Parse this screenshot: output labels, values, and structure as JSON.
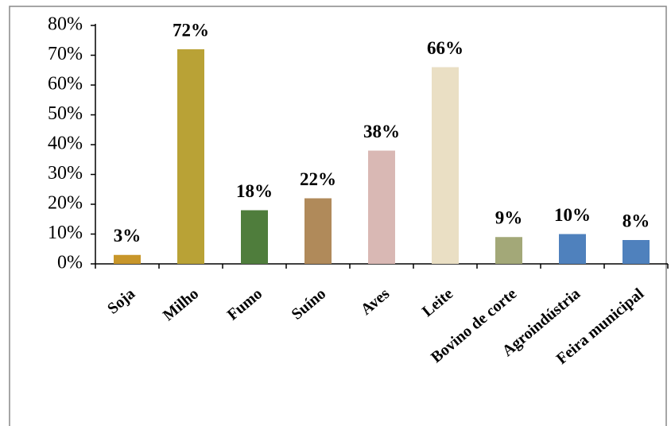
{
  "chart_data": {
    "type": "bar",
    "categories": [
      "Soja",
      "Milho",
      "Fumo",
      "Suíno",
      "Aves",
      "Leite",
      "Bovino de corte",
      "Agroindústria",
      "Feira municipal"
    ],
    "values": [
      3,
      72,
      18,
      22,
      38,
      66,
      9,
      10,
      8
    ],
    "value_labels": [
      "3%",
      "72%",
      "18%",
      "22%",
      "38%",
      "66%",
      "9%",
      "10%",
      "8%"
    ],
    "colors": [
      "#c8962a",
      "#b9a236",
      "#4f7d3c",
      "#b08a5a",
      "#d9b8b4",
      "#eadfc4",
      "#a3a878",
      "#4f81bd",
      "#4f81bd"
    ],
    "ylim": [
      0,
      80
    ],
    "yticks": [
      {
        "value": 0,
        "label": "0%"
      },
      {
        "value": 10,
        "label": "10%"
      },
      {
        "value": 20,
        "label": "20%"
      },
      {
        "value": 30,
        "label": "30%"
      },
      {
        "value": 40,
        "label": "40%"
      },
      {
        "value": 50,
        "label": "50%"
      },
      {
        "value": 60,
        "label": "60%"
      },
      {
        "value": 70,
        "label": "70%"
      },
      {
        "value": 80,
        "label": "80%"
      }
    ]
  }
}
